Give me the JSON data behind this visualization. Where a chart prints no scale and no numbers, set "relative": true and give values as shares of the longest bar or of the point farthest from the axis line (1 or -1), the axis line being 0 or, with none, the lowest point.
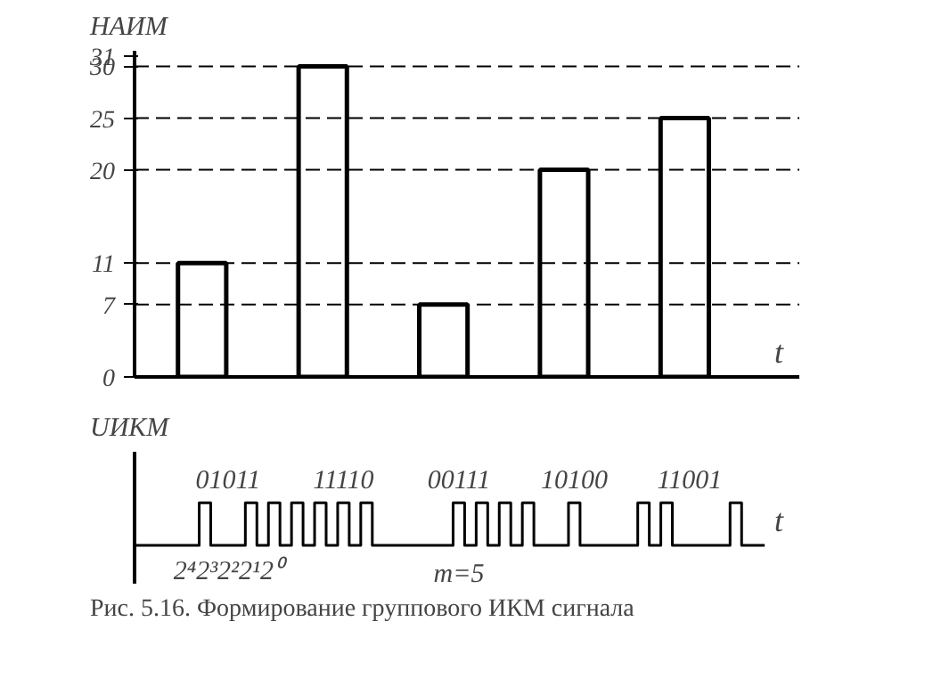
{
  "chart_data": [
    {
      "type": "bar",
      "ylabel": "HАИМ",
      "xlabel": "t",
      "categories": [
        null,
        null,
        null,
        null,
        null
      ],
      "values": [
        11,
        30,
        7,
        20,
        25
      ],
      "color": "#000000",
      "ylim": [
        0,
        31.5
      ],
      "yticks": [
        0,
        7,
        11,
        20,
        25,
        30,
        31
      ],
      "grid": false,
      "ref_lines": [
        {
          "axis": "y",
          "value": 30,
          "label": null,
          "line_style": "dashed"
        },
        {
          "axis": "y",
          "value": 25,
          "label": null,
          "line_style": "dashed"
        },
        {
          "axis": "y",
          "value": 20,
          "label": null,
          "line_style": "dashed"
        },
        {
          "axis": "y",
          "value": 11,
          "label": null,
          "line_style": "dashed"
        },
        {
          "axis": "y",
          "value": 7,
          "label": null,
          "line_style": "dashed"
        }
      ]
    },
    {
      "type": "step",
      "ylabel": "UИКМ",
      "xlabel": "t",
      "relative": true,
      "color": "#000000",
      "grid": false,
      "categories": [
        null,
        null,
        null,
        null,
        null,
        null,
        null,
        null,
        null,
        null,
        null,
        null,
        null,
        null,
        null,
        null,
        null,
        null,
        null,
        null,
        null,
        null,
        null,
        null,
        null,
        null,
        null,
        null,
        null,
        null,
        null,
        null,
        null,
        null,
        null,
        null,
        null,
        null,
        null,
        null,
        null,
        null,
        null,
        null,
        null,
        null,
        null,
        null,
        null,
        null,
        null,
        null,
        null,
        null,
        null,
        null
      ],
      "values": [
        0,
        0,
        0,
        0,
        0,
        0,
        1,
        0,
        0,
        0,
        1,
        0,
        1,
        0,
        1,
        0,
        1,
        0,
        1,
        0,
        1,
        0,
        0,
        0,
        0,
        0,
        0,
        0,
        1,
        0,
        1,
        0,
        1,
        0,
        1,
        0,
        0,
        0,
        1,
        0,
        0,
        0,
        0,
        0,
        1,
        0,
        1,
        0,
        0,
        0,
        0,
        0,
        1,
        0,
        0,
        0
      ],
      "annotations": [
        "01011",
        "11110",
        "00111",
        "10100",
        "11001",
        "2⁴2³2²2¹2⁰",
        "m=5",
        "Рис. 5.16. Формирование группового ИКМ сигнала"
      ]
    }
  ]
}
